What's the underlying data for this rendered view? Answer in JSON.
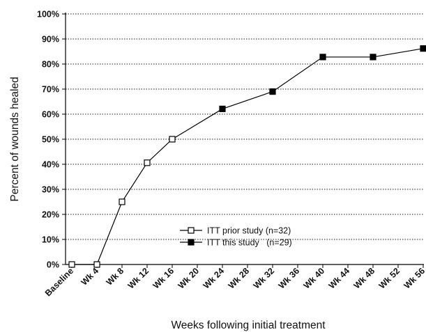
{
  "chart_data": {
    "type": "line",
    "title": "",
    "xlabel": "Weeks following initial treatment",
    "ylabel": "Percent of wounds healed",
    "ylim": [
      0,
      100
    ],
    "y_ticks": [
      "0%",
      "10%",
      "20%",
      "30%",
      "40%",
      "50%",
      "60%",
      "70%",
      "80%",
      "90%",
      "100%"
    ],
    "categories": [
      "Baseline",
      "Wk 4",
      "Wk 8",
      "Wk 12",
      "Wk 16",
      "Wk 20",
      "Wk 24",
      "Wk 28",
      "Wk 32",
      "Wk 36",
      "Wk 40",
      "Wk 44",
      "Wk 48",
      "Wk 52",
      "Wk 56"
    ],
    "grid": "horizontal dotted",
    "legend_position": "center-right",
    "series": [
      {
        "name": "ITT prior study (n=32)",
        "marker": "open-square",
        "color": "#000000",
        "points": [
          {
            "x": "Baseline",
            "y": 0
          },
          {
            "x": "Wk 4",
            "y": 0
          },
          {
            "x": "Wk 8",
            "y": 25
          },
          {
            "x": "Wk 12",
            "y": 40.6
          },
          {
            "x": "Wk 16",
            "y": 50
          }
        ]
      },
      {
        "name": "ITT this study   (n=29)",
        "marker": "filled-square",
        "color": "#000000",
        "points": [
          {
            "x": "Wk 24",
            "y": 62.1
          },
          {
            "x": "Wk 32",
            "y": 69
          },
          {
            "x": "Wk 40",
            "y": 82.8
          },
          {
            "x": "Wk 48",
            "y": 82.8
          },
          {
            "x": "Wk 56",
            "y": 86.2
          }
        ]
      }
    ]
  }
}
